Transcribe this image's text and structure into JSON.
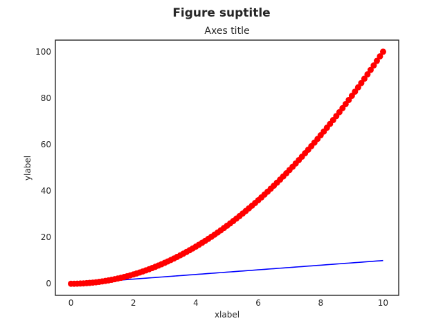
{
  "chart_data": {
    "type": "line",
    "suptitle": "Figure suptitle",
    "title": "Axes title",
    "xlabel": "xlabel",
    "ylabel": "ylabel",
    "xlim": [
      -0.5,
      10.5
    ],
    "ylim": [
      -5,
      105
    ],
    "xticks": [
      0,
      2,
      4,
      6,
      8,
      10
    ],
    "yticks": [
      0,
      20,
      40,
      60,
      80,
      100
    ],
    "x": [
      0,
      0.1,
      0.2,
      0.3,
      0.4,
      0.5,
      0.6,
      0.7,
      0.8,
      0.9,
      1,
      1.1,
      1.2,
      1.3,
      1.4,
      1.5,
      1.6,
      1.7,
      1.8,
      1.9,
      2,
      2.1,
      2.2,
      2.3,
      2.4,
      2.5,
      2.6,
      2.7,
      2.8,
      2.9,
      3,
      3.1,
      3.2,
      3.3,
      3.4,
      3.5,
      3.6,
      3.7,
      3.8,
      3.9,
      4,
      4.1,
      4.2,
      4.3,
      4.4,
      4.5,
      4.6,
      4.7,
      4.8,
      4.9,
      5,
      5.1,
      5.2,
      5.3,
      5.4,
      5.5,
      5.6,
      5.7,
      5.8,
      5.9,
      6,
      6.1,
      6.2,
      6.3,
      6.4,
      6.5,
      6.6,
      6.7,
      6.8,
      6.9,
      7,
      7.1,
      7.2,
      7.3,
      7.4,
      7.5,
      7.6,
      7.7,
      7.8,
      7.9,
      8,
      8.1,
      8.2,
      8.3,
      8.4,
      8.5,
      8.6,
      8.7,
      8.8,
      8.9,
      9,
      9.1,
      9.2,
      9.3,
      9.4,
      9.5,
      9.6,
      9.7,
      9.8,
      9.9,
      10
    ],
    "series": [
      {
        "style": "line",
        "color": "#0000ff",
        "values": [
          0,
          0.1,
          0.2,
          0.3,
          0.4,
          0.5,
          0.6,
          0.7,
          0.8,
          0.9,
          1,
          1.1,
          1.2,
          1.3,
          1.4,
          1.5,
          1.6,
          1.7,
          1.8,
          1.9,
          2,
          2.1,
          2.2,
          2.3,
          2.4,
          2.5,
          2.6,
          2.7,
          2.8,
          2.9,
          3,
          3.1,
          3.2,
          3.3,
          3.4,
          3.5,
          3.6,
          3.7,
          3.8,
          3.9,
          4,
          4.1,
          4.2,
          4.3,
          4.4,
          4.5,
          4.6,
          4.7,
          4.8,
          4.9,
          5,
          5.1,
          5.2,
          5.3,
          5.4,
          5.5,
          5.6,
          5.7,
          5.8,
          5.9,
          6,
          6.1,
          6.2,
          6.3,
          6.4,
          6.5,
          6.6,
          6.7,
          6.8,
          6.9,
          7,
          7.1,
          7.2,
          7.3,
          7.4,
          7.5,
          7.6,
          7.7,
          7.8,
          7.9,
          8,
          8.1,
          8.2,
          8.3,
          8.4,
          8.5,
          8.6,
          8.7,
          8.8,
          8.9,
          9,
          9.1,
          9.2,
          9.3,
          9.4,
          9.5,
          9.6,
          9.7,
          9.8,
          9.9,
          10
        ]
      },
      {
        "style": "markers",
        "color": "#ff0000",
        "values": [
          0,
          0.01,
          0.04,
          0.09,
          0.16,
          0.25,
          0.36,
          0.49,
          0.64,
          0.81,
          1,
          1.21,
          1.44,
          1.69,
          1.96,
          2.25,
          2.56,
          2.89,
          3.24,
          3.61,
          4,
          4.41,
          4.84,
          5.29,
          5.76,
          6.25,
          6.76,
          7.29,
          7.84,
          8.41,
          9,
          9.61,
          10.24,
          10.89,
          11.56,
          12.25,
          12.96,
          13.69,
          14.44,
          15.21,
          16,
          16.81,
          17.64,
          18.49,
          19.36,
          20.25,
          21.16,
          22.09,
          23.04,
          24.01,
          25,
          26.01,
          27.04,
          28.09,
          29.16,
          30.25,
          31.36,
          32.49,
          33.64,
          34.81,
          36,
          37.21,
          38.44,
          39.69,
          40.96,
          42.25,
          43.56,
          44.89,
          46.24,
          47.61,
          49,
          50.41,
          51.84,
          53.29,
          54.76,
          56.25,
          57.76,
          59.29,
          60.84,
          62.41,
          64,
          65.61,
          67.24,
          68.89,
          70.56,
          72.25,
          73.96,
          75.69,
          77.44,
          79.21,
          81,
          82.81,
          84.64,
          86.49,
          88.36,
          90.25,
          92.16,
          94.09,
          96.04,
          98.01,
          100
        ]
      }
    ],
    "grid": false,
    "legend": "none"
  }
}
